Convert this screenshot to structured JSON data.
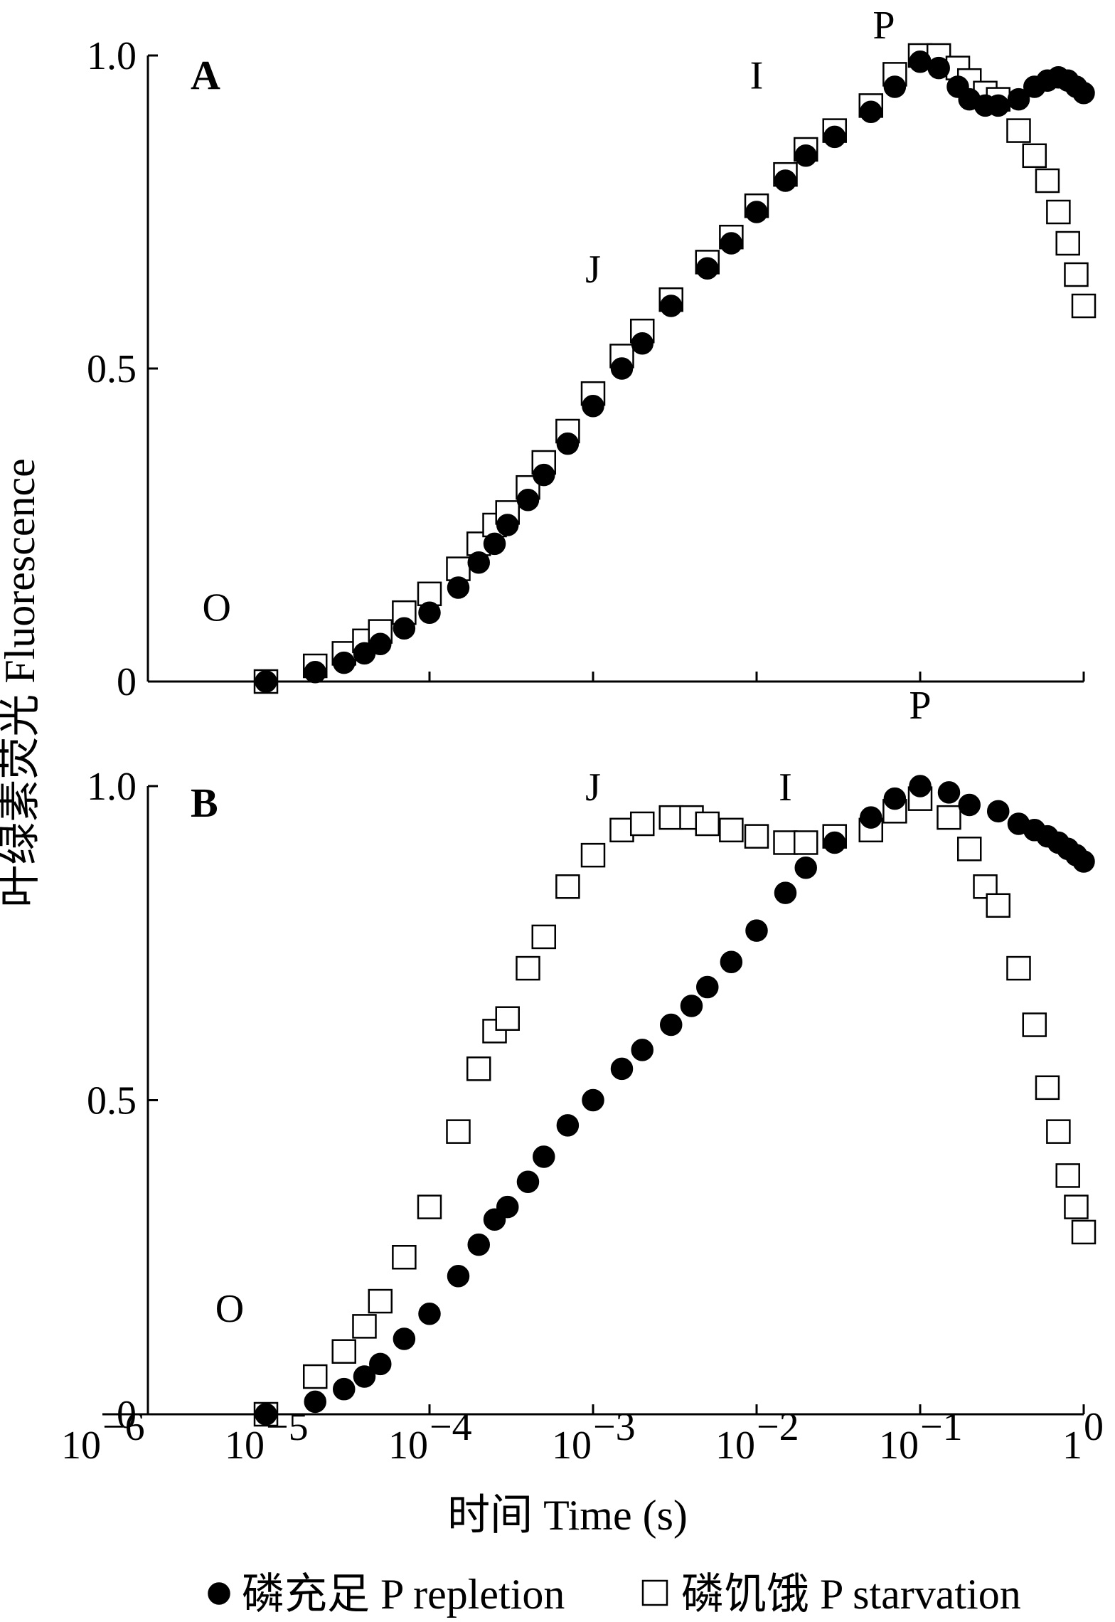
{
  "chart_data": [
    {
      "type": "scatter",
      "panel": "A",
      "x_scale": "log",
      "xlim": [
        1e-06,
        1
      ],
      "ylim": [
        0,
        1
      ],
      "y_ticks": [
        "0",
        "0.5",
        "1.0"
      ],
      "phase_labels": [
        {
          "text": "O",
          "x": 5e-06,
          "y": 0.12
        },
        {
          "text": "J",
          "x": 0.001,
          "y": 0.66
        },
        {
          "text": "I",
          "x": 0.01,
          "y": 0.97
        },
        {
          "text": "P",
          "x": 0.06,
          "y": 1.05
        }
      ],
      "series": [
        {
          "name": "磷充足 P repletion",
          "marker": "filled-circle",
          "x": [
            1e-05,
            2e-05,
            3e-05,
            4e-05,
            5e-05,
            7e-05,
            0.0001,
            0.00015,
            0.0002,
            0.00025,
            0.0003,
            0.0004,
            0.0005,
            0.0007,
            0.001,
            0.0015,
            0.002,
            0.003,
            0.005,
            0.007,
            0.01,
            0.015,
            0.02,
            0.03,
            0.05,
            0.07,
            0.1,
            0.13,
            0.17,
            0.2,
            0.25,
            0.3,
            0.4,
            0.5,
            0.6,
            0.7,
            0.8,
            0.9,
            1.0
          ],
          "y": [
            0.0,
            0.015,
            0.03,
            0.045,
            0.06,
            0.085,
            0.11,
            0.15,
            0.19,
            0.22,
            0.25,
            0.29,
            0.33,
            0.38,
            0.44,
            0.5,
            0.54,
            0.6,
            0.66,
            0.7,
            0.75,
            0.8,
            0.84,
            0.87,
            0.91,
            0.95,
            0.99,
            0.98,
            0.95,
            0.93,
            0.92,
            0.92,
            0.93,
            0.95,
            0.96,
            0.965,
            0.96,
            0.95,
            0.94
          ]
        },
        {
          "name": "磷饥饿 P starvation",
          "marker": "open-square",
          "x": [
            1e-05,
            2e-05,
            3e-05,
            4e-05,
            5e-05,
            7e-05,
            0.0001,
            0.00015,
            0.0002,
            0.00025,
            0.0003,
            0.0004,
            0.0005,
            0.0007,
            0.001,
            0.0015,
            0.002,
            0.003,
            0.005,
            0.007,
            0.01,
            0.015,
            0.02,
            0.03,
            0.05,
            0.07,
            0.1,
            0.13,
            0.17,
            0.2,
            0.25,
            0.3,
            0.4,
            0.5,
            0.6,
            0.7,
            0.8,
            0.9,
            1.0
          ],
          "y": [
            0.0,
            0.025,
            0.045,
            0.065,
            0.08,
            0.11,
            0.14,
            0.18,
            0.22,
            0.25,
            0.27,
            0.31,
            0.35,
            0.4,
            0.46,
            0.52,
            0.56,
            0.61,
            0.67,
            0.71,
            0.76,
            0.81,
            0.85,
            0.88,
            0.92,
            0.97,
            1.0,
            1.0,
            0.98,
            0.96,
            0.94,
            0.93,
            0.88,
            0.84,
            0.8,
            0.75,
            0.7,
            0.65,
            0.6
          ]
        }
      ]
    },
    {
      "type": "scatter",
      "panel": "B",
      "x_scale": "log",
      "xlim": [
        1e-06,
        1
      ],
      "ylim": [
        0,
        1
      ],
      "y_ticks": [
        "0",
        "0.5",
        "1.0"
      ],
      "x_ticks": [
        {
          "base": "10",
          "exp": "−6"
        },
        {
          "base": "10",
          "exp": "−5"
        },
        {
          "base": "10",
          "exp": "−4"
        },
        {
          "base": "10",
          "exp": "−3"
        },
        {
          "base": "10",
          "exp": "−2"
        },
        {
          "base": "10",
          "exp": "−1"
        },
        {
          "base": "1",
          "exp": "0"
        }
      ],
      "phase_labels": [
        {
          "text": "O",
          "x": 6e-06,
          "y": 0.17
        },
        {
          "text": "J",
          "x": 0.001,
          "y": 1.0
        },
        {
          "text": "I",
          "x": 0.015,
          "y": 1.0
        },
        {
          "text": "P",
          "x": 0.1,
          "y": 1.13
        }
      ],
      "series": [
        {
          "name": "磷充足 P repletion",
          "marker": "filled-circle",
          "x": [
            1e-05,
            2e-05,
            3e-05,
            4e-05,
            5e-05,
            7e-05,
            0.0001,
            0.00015,
            0.0002,
            0.00025,
            0.0003,
            0.0004,
            0.0005,
            0.0007,
            0.001,
            0.0015,
            0.002,
            0.003,
            0.004,
            0.005,
            0.007,
            0.01,
            0.015,
            0.02,
            0.03,
            0.05,
            0.07,
            0.1,
            0.15,
            0.2,
            0.3,
            0.4,
            0.5,
            0.6,
            0.7,
            0.8,
            0.9,
            1.0
          ],
          "y": [
            0.0,
            0.02,
            0.04,
            0.06,
            0.08,
            0.12,
            0.16,
            0.22,
            0.27,
            0.31,
            0.33,
            0.37,
            0.41,
            0.46,
            0.5,
            0.55,
            0.58,
            0.62,
            0.65,
            0.68,
            0.72,
            0.77,
            0.83,
            0.87,
            0.91,
            0.95,
            0.98,
            1.0,
            0.99,
            0.97,
            0.96,
            0.94,
            0.93,
            0.92,
            0.91,
            0.9,
            0.89,
            0.88
          ]
        },
        {
          "name": "磷饥饿 P starvation",
          "marker": "open-square",
          "x": [
            1e-05,
            2e-05,
            3e-05,
            4e-05,
            5e-05,
            7e-05,
            0.0001,
            0.00015,
            0.0002,
            0.00025,
            0.0003,
            0.0004,
            0.0005,
            0.0007,
            0.001,
            0.0015,
            0.002,
            0.003,
            0.004,
            0.005,
            0.007,
            0.01,
            0.015,
            0.02,
            0.03,
            0.05,
            0.07,
            0.1,
            0.15,
            0.2,
            0.25,
            0.3,
            0.4,
            0.5,
            0.6,
            0.7,
            0.8,
            0.9,
            1.0
          ],
          "y": [
            0.0,
            0.06,
            0.1,
            0.14,
            0.18,
            0.25,
            0.33,
            0.45,
            0.55,
            0.61,
            0.63,
            0.71,
            0.76,
            0.84,
            0.89,
            0.93,
            0.94,
            0.95,
            0.95,
            0.94,
            0.93,
            0.92,
            0.91,
            0.91,
            0.92,
            0.93,
            0.96,
            0.98,
            0.95,
            0.9,
            0.84,
            0.81,
            0.71,
            0.62,
            0.52,
            0.45,
            0.38,
            0.33,
            0.29
          ]
        }
      ]
    }
  ],
  "axes": {
    "x_title": "时间 Time (s)",
    "y_title": "叶绿素荧光 Fluorescence"
  },
  "legend": {
    "repletion_label": "磷充足 P repletion",
    "starvation_label": "磷饥饿 P starvation"
  }
}
